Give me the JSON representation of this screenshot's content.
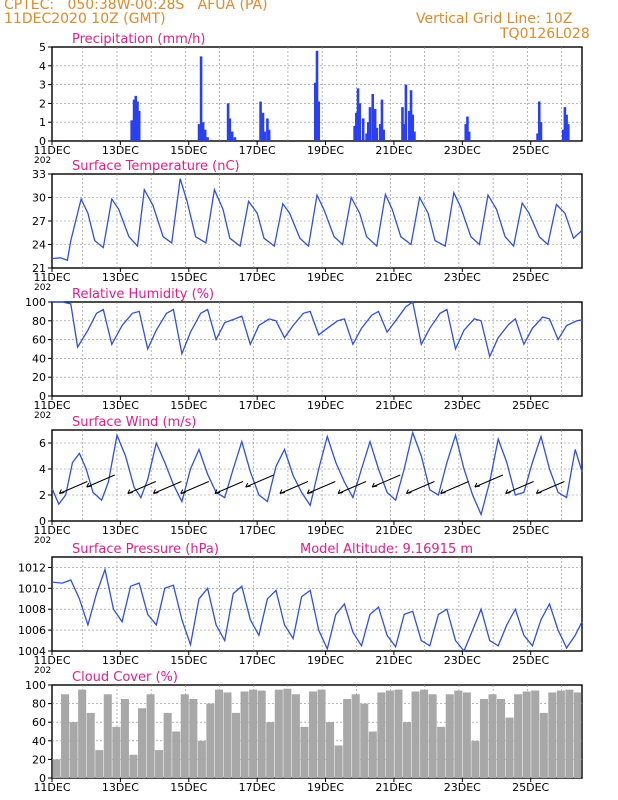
{
  "header": {
    "line1": "CPTEC:   050:38W-00:28S   AFUA (PA)",
    "line2": "11DEC2020 10Z (GMT)",
    "grid_note": "Vertical Grid Line: 10Z",
    "code": "TQ0126L028"
  },
  "colors": {
    "header_text": "#e08a2a",
    "panel_title": "#e0208a",
    "series_line": "#3050e0",
    "bars": "#2a40f0",
    "cloud_fill": "#a8a8a8",
    "grid": "#8a8a8a",
    "arrow": "#000000"
  },
  "chart_data": [
    {
      "id": "precip",
      "type": "bar",
      "title": "Precipitation (mm/h)",
      "xlabel": "",
      "ylabel": "",
      "x_ticks": [
        "11DEC",
        "13DEC",
        "15DEC",
        "17DEC",
        "19DEC",
        "21DEC",
        "23DEC",
        "25DEC"
      ],
      "x_sublabel": "202",
      "xlim": [
        0,
        15.5
      ],
      "ylim": [
        0,
        5
      ],
      "y_ticks": [
        0,
        1,
        2,
        3,
        4,
        5
      ],
      "grid": true,
      "day_offsets": [
        0.0,
        2.33,
        2.4,
        2.45,
        2.5,
        2.55,
        4.3,
        4.36,
        4.42,
        4.48,
        4.55,
        5.15,
        5.2,
        5.27,
        5.35,
        6.1,
        6.17,
        6.22,
        6.3,
        6.35,
        7.7,
        7.75,
        7.8,
        8.85,
        8.9,
        8.95,
        9.0,
        9.1,
        9.2,
        9.25,
        9.3,
        9.38,
        9.45,
        9.5,
        9.6,
        9.65,
        9.7,
        10.25,
        10.3,
        10.35,
        10.45,
        10.5,
        10.55,
        10.6,
        12.1,
        12.15,
        12.2,
        14.2,
        14.25,
        14.3,
        14.95,
        15.0,
        15.05,
        15.1
      ],
      "values": [
        0.03,
        1.1,
        2.2,
        2.4,
        2.1,
        1.6,
        0.9,
        4.5,
        1.0,
        0.6,
        0.2,
        2.0,
        1.2,
        0.5,
        0.2,
        2.1,
        1.5,
        0.5,
        1.2,
        0.6,
        3.1,
        4.8,
        2.1,
        0.8,
        1.5,
        2.8,
        2.0,
        1.2,
        0.4,
        1.0,
        1.8,
        2.5,
        1.7,
        0.7,
        0.9,
        2.2,
        0.6,
        1.8,
        0.9,
        3.0,
        1.6,
        2.7,
        1.4,
        0.5,
        0.9,
        1.3,
        0.5,
        0.4,
        2.1,
        1.0,
        0.6,
        1.8,
        1.4,
        0.9
      ]
    },
    {
      "id": "temp",
      "type": "line",
      "title": "Surface Temperature (nC)",
      "xlabel": "",
      "ylabel": "",
      "x_ticks": [
        "11DEC",
        "13DEC",
        "15DEC",
        "17DEC",
        "19DEC",
        "21DEC",
        "23DEC",
        "25DEC"
      ],
      "x_sublabel": "202",
      "xlim": [
        0,
        15.5
      ],
      "ylim": [
        21,
        33
      ],
      "y_ticks": [
        21,
        24,
        27,
        30,
        33
      ],
      "grid": true,
      "day_offsets": [
        0.0,
        0.25,
        0.45,
        0.55,
        0.85,
        1.05,
        1.25,
        1.5,
        1.75,
        1.95,
        2.25,
        2.5,
        2.7,
        2.95,
        3.25,
        3.5,
        3.75,
        3.95,
        4.2,
        4.5,
        4.75,
        5.0,
        5.2,
        5.5,
        5.75,
        6.0,
        6.2,
        6.5,
        6.75,
        6.95,
        7.25,
        7.5,
        7.75,
        7.95,
        8.25,
        8.5,
        8.75,
        9.0,
        9.2,
        9.5,
        9.75,
        9.95,
        10.2,
        10.5,
        10.75,
        11.0,
        11.2,
        11.5,
        11.75,
        11.95,
        12.25,
        12.5,
        12.75,
        13.0,
        13.25,
        13.5,
        13.75,
        13.95,
        14.25,
        14.5,
        14.75,
        15.0,
        15.25,
        15.5
      ],
      "values": [
        22.2,
        22.3,
        22.0,
        24.5,
        29.8,
        28.0,
        24.5,
        23.6,
        29.8,
        28.5,
        25.0,
        23.8,
        31.0,
        29.0,
        25.0,
        24.2,
        32.4,
        29.5,
        25.0,
        24.2,
        31.0,
        28.5,
        24.8,
        23.8,
        29.5,
        28.0,
        24.8,
        23.8,
        29.2,
        28.0,
        24.8,
        23.8,
        30.3,
        28.5,
        25.0,
        24.0,
        30.0,
        28.0,
        25.0,
        23.8,
        30.4,
        28.5,
        25.0,
        24.0,
        30.0,
        28.0,
        24.5,
        23.8,
        30.6,
        28.8,
        25.0,
        24.0,
        30.3,
        28.5,
        25.0,
        23.8,
        29.3,
        28.0,
        25.0,
        24.0,
        29.1,
        28.0,
        24.8,
        25.8
      ]
    },
    {
      "id": "rh",
      "type": "line",
      "title": "Relative Humidity (%)",
      "xlabel": "",
      "ylabel": "",
      "x_ticks": [
        "11DEC",
        "13DEC",
        "15DEC",
        "17DEC",
        "19DEC",
        "21DEC",
        "23DEC",
        "25DEC"
      ],
      "x_sublabel": "202",
      "xlim": [
        0,
        15.5
      ],
      "ylim": [
        0,
        100
      ],
      "y_ticks": [
        0,
        20,
        40,
        60,
        80,
        100
      ],
      "grid": true,
      "day_offsets": [
        0.0,
        0.3,
        0.55,
        0.75,
        1.05,
        1.3,
        1.5,
        1.75,
        2.05,
        2.35,
        2.55,
        2.8,
        3.05,
        3.35,
        3.55,
        3.8,
        4.05,
        4.35,
        4.55,
        4.8,
        5.05,
        5.35,
        5.55,
        5.8,
        6.05,
        6.35,
        6.55,
        6.8,
        7.05,
        7.35,
        7.55,
        7.8,
        8.05,
        8.35,
        8.55,
        8.8,
        9.05,
        9.35,
        9.55,
        9.8,
        10.05,
        10.35,
        10.55,
        10.8,
        11.05,
        11.35,
        11.55,
        11.8,
        12.05,
        12.35,
        12.55,
        12.8,
        13.05,
        13.35,
        13.55,
        13.8,
        14.05,
        14.35,
        14.55,
        14.8,
        15.05,
        15.35,
        15.5
      ],
      "values": [
        100,
        100,
        98,
        52,
        70,
        88,
        92,
        55,
        75,
        88,
        90,
        50,
        70,
        88,
        92,
        45,
        68,
        88,
        92,
        60,
        78,
        82,
        85,
        55,
        75,
        82,
        80,
        62,
        75,
        88,
        90,
        65,
        72,
        80,
        82,
        55,
        72,
        86,
        90,
        68,
        80,
        95,
        100,
        55,
        72,
        88,
        92,
        50,
        70,
        82,
        80,
        42,
        62,
        76,
        82,
        55,
        72,
        84,
        82,
        60,
        75,
        80,
        81
      ]
    },
    {
      "id": "wind",
      "type": "line",
      "title": "Surface Wind (m/s)",
      "xlabel": "",
      "ylabel": "",
      "x_ticks": [
        "11DEC",
        "13DEC",
        "15DEC",
        "17DEC",
        "19DEC",
        "21DEC",
        "23DEC",
        "25DEC"
      ],
      "x_sublabel": "202",
      "xlim": [
        0,
        15.5
      ],
      "ylim": [
        0,
        7
      ],
      "y_ticks": [
        0,
        2,
        4,
        6
      ],
      "grid": true,
      "day_offsets": [
        0.0,
        0.2,
        0.4,
        0.6,
        0.8,
        1.0,
        1.2,
        1.45,
        1.65,
        1.9,
        2.15,
        2.4,
        2.6,
        2.8,
        3.05,
        3.3,
        3.55,
        3.8,
        4.05,
        4.3,
        4.55,
        4.8,
        5.05,
        5.3,
        5.55,
        5.8,
        6.05,
        6.3,
        6.55,
        6.8,
        7.05,
        7.3,
        7.55,
        7.8,
        8.05,
        8.3,
        8.55,
        8.8,
        9.05,
        9.3,
        9.55,
        9.8,
        10.05,
        10.3,
        10.55,
        10.8,
        11.05,
        11.3,
        11.55,
        11.8,
        12.05,
        12.3,
        12.55,
        12.8,
        13.05,
        13.3,
        13.55,
        13.8,
        14.05,
        14.3,
        14.55,
        14.8,
        15.05,
        15.3,
        15.5
      ],
      "values": [
        2.5,
        1.3,
        2.0,
        4.5,
        5.2,
        4.0,
        2.2,
        1.6,
        3.0,
        6.6,
        5.0,
        2.6,
        1.8,
        3.2,
        6.0,
        4.5,
        2.8,
        1.5,
        4.0,
        5.5,
        3.6,
        2.2,
        1.8,
        4.0,
        6.1,
        3.8,
        2.0,
        1.5,
        4.2,
        5.5,
        3.5,
        2.2,
        1.2,
        4.0,
        6.5,
        4.5,
        3.0,
        1.8,
        4.0,
        6.1,
        4.0,
        2.2,
        1.6,
        4.0,
        6.8,
        5.0,
        2.4,
        2.0,
        4.5,
        6.6,
        4.0,
        2.0,
        0.5,
        3.0,
        6.3,
        4.5,
        2.0,
        2.2,
        4.5,
        6.5,
        4.0,
        2.2,
        1.8,
        5.5,
        3.8
      ],
      "barbs": [
        {
          "day": 0.45,
          "dir_deg": 150,
          "speed": 2.5
        },
        {
          "day": 1.25,
          "dir_deg": 145,
          "speed": 3.0
        },
        {
          "day": 2.45,
          "dir_deg": 150,
          "speed": 2.5
        },
        {
          "day": 3.2,
          "dir_deg": 145,
          "speed": 2.5
        },
        {
          "day": 4.0,
          "dir_deg": 150,
          "speed": 2.5
        },
        {
          "day": 5.0,
          "dir_deg": 145,
          "speed": 2.5
        },
        {
          "day": 5.9,
          "dir_deg": 150,
          "speed": 3.0
        },
        {
          "day": 6.9,
          "dir_deg": 145,
          "speed": 2.5
        },
        {
          "day": 7.7,
          "dir_deg": 150,
          "speed": 2.5
        },
        {
          "day": 8.6,
          "dir_deg": 145,
          "speed": 2.5
        },
        {
          "day": 9.6,
          "dir_deg": 150,
          "speed": 3.0
        },
        {
          "day": 10.6,
          "dir_deg": 145,
          "speed": 2.5
        },
        {
          "day": 11.6,
          "dir_deg": 150,
          "speed": 2.5
        },
        {
          "day": 12.6,
          "dir_deg": 145,
          "speed": 3.0
        },
        {
          "day": 13.5,
          "dir_deg": 150,
          "speed": 2.5
        },
        {
          "day": 14.4,
          "dir_deg": 145,
          "speed": 2.5
        }
      ]
    },
    {
      "id": "pressure",
      "type": "line",
      "title": "Surface Pressure (hPa)",
      "annotation": "Model Altitude: 9.16915 m",
      "xlabel": "",
      "ylabel": "",
      "x_ticks": [
        "11DEC",
        "13DEC",
        "15DEC",
        "17DEC",
        "19DEC",
        "21DEC",
        "23DEC",
        "25DEC"
      ],
      "x_sublabel": "202",
      "xlim": [
        0,
        15.5
      ],
      "ylim": [
        1004,
        1013
      ],
      "y_ticks": [
        1004,
        1006,
        1008,
        1010,
        1012
      ],
      "grid": true,
      "day_offsets": [
        0.0,
        0.3,
        0.55,
        0.8,
        1.05,
        1.3,
        1.55,
        1.8,
        2.05,
        2.3,
        2.55,
        2.8,
        3.05,
        3.3,
        3.55,
        3.8,
        4.05,
        4.3,
        4.55,
        4.8,
        5.05,
        5.3,
        5.55,
        5.8,
        6.05,
        6.3,
        6.55,
        6.8,
        7.05,
        7.3,
        7.55,
        7.8,
        8.05,
        8.3,
        8.55,
        8.8,
        9.05,
        9.3,
        9.55,
        9.8,
        10.05,
        10.3,
        10.55,
        10.8,
        11.05,
        11.3,
        11.55,
        11.8,
        12.05,
        12.3,
        12.55,
        12.8,
        13.05,
        13.3,
        13.55,
        13.8,
        14.05,
        14.3,
        14.55,
        14.8,
        15.05,
        15.3,
        15.5
      ],
      "values": [
        1010.6,
        1010.5,
        1010.8,
        1009.0,
        1006.5,
        1009.5,
        1011.8,
        1008.0,
        1006.8,
        1010.2,
        1010.5,
        1007.5,
        1006.5,
        1010.0,
        1010.3,
        1007.0,
        1004.6,
        1009.0,
        1010.0,
        1006.5,
        1005.0,
        1009.5,
        1010.2,
        1007.0,
        1005.5,
        1009.0,
        1009.8,
        1006.5,
        1005.2,
        1009.2,
        1009.8,
        1006.0,
        1004.2,
        1007.5,
        1008.5,
        1005.8,
        1004.5,
        1007.5,
        1008.2,
        1005.5,
        1004.4,
        1007.5,
        1007.8,
        1005.0,
        1004.5,
        1007.5,
        1008.0,
        1005.0,
        1004.0,
        1006.0,
        1008.0,
        1005.0,
        1004.5,
        1006.5,
        1008.0,
        1005.5,
        1004.5,
        1007.0,
        1008.5,
        1006.0,
        1004.3,
        1005.5,
        1006.8
      ]
    },
    {
      "id": "cloud",
      "type": "bar",
      "title": "Cloud Cover (%)",
      "xlabel": "",
      "ylabel": "",
      "x_ticks": [
        "11DEC",
        "13DEC",
        "15DEC",
        "17DEC",
        "19DEC",
        "21DEC",
        "23DEC",
        "25DEC"
      ],
      "x_sublabel": "",
      "xlim": [
        0,
        15.5
      ],
      "ylim": [
        0,
        100
      ],
      "y_ticks": [
        0,
        20,
        40,
        60,
        80,
        100
      ],
      "grid": true,
      "day_offsets": [
        0.0,
        0.25,
        0.5,
        0.75,
        1.0,
        1.25,
        1.5,
        1.75,
        2.0,
        2.25,
        2.5,
        2.75,
        3.0,
        3.25,
        3.5,
        3.75,
        4.0,
        4.25,
        4.5,
        4.75,
        5.0,
        5.25,
        5.5,
        5.75,
        6.0,
        6.25,
        6.5,
        6.75,
        7.0,
        7.25,
        7.5,
        7.75,
        8.0,
        8.25,
        8.5,
        8.75,
        9.0,
        9.25,
        9.5,
        9.75,
        10.0,
        10.25,
        10.5,
        10.75,
        11.0,
        11.25,
        11.5,
        11.75,
        12.0,
        12.25,
        12.5,
        12.75,
        13.0,
        13.25,
        13.5,
        13.75,
        14.0,
        14.25,
        14.5,
        14.75,
        15.0,
        15.25
      ],
      "values": [
        20,
        90,
        60,
        95,
        70,
        30,
        90,
        55,
        85,
        25,
        75,
        90,
        30,
        70,
        50,
        90,
        85,
        40,
        80,
        95,
        92,
        70,
        93,
        95,
        94,
        60,
        95,
        96,
        90,
        55,
        93,
        95,
        60,
        35,
        85,
        90,
        80,
        50,
        92,
        94,
        95,
        60,
        93,
        95,
        90,
        55,
        90,
        94,
        92,
        40,
        85,
        90,
        85,
        65,
        90,
        93,
        94,
        70,
        92,
        94,
        95,
        92
      ]
    }
  ]
}
